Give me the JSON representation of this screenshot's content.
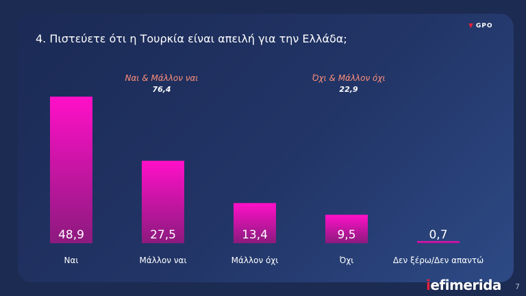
{
  "title": "4. Πιστεύετε ότι η Τουρκία είναι απειλή για την Ελλάδα;",
  "logo_text": "GPO",
  "groups": [
    {
      "label": "Ναι & Μάλλον ναι",
      "value": "76,4"
    },
    {
      "label": "Όχι & Μάλλον όχι",
      "value": "22,9"
    }
  ],
  "chart_data": {
    "type": "bar",
    "title": "4. Πιστεύετε ότι η Τουρκία είναι απειλή για την Ελλάδα;",
    "categories": [
      "Ναι",
      "Μάλλον ναι",
      "Μάλλον όχι",
      "Όχι",
      "Δεν ξέρω/Δεν απαντώ"
    ],
    "values": [
      48.9,
      27.5,
      13.4,
      9.5,
      0.7
    ],
    "value_labels": [
      "48,9",
      "27,5",
      "13,4",
      "9,5",
      "0,7"
    ],
    "xlabel": "",
    "ylabel": "",
    "grid": false,
    "colors": {
      "bar_top": "#ff10c8",
      "bar_bottom": "#8c1a7e"
    }
  },
  "brand": {
    "prefix": "i",
    "name": "efimerida"
  },
  "page_number": "7"
}
